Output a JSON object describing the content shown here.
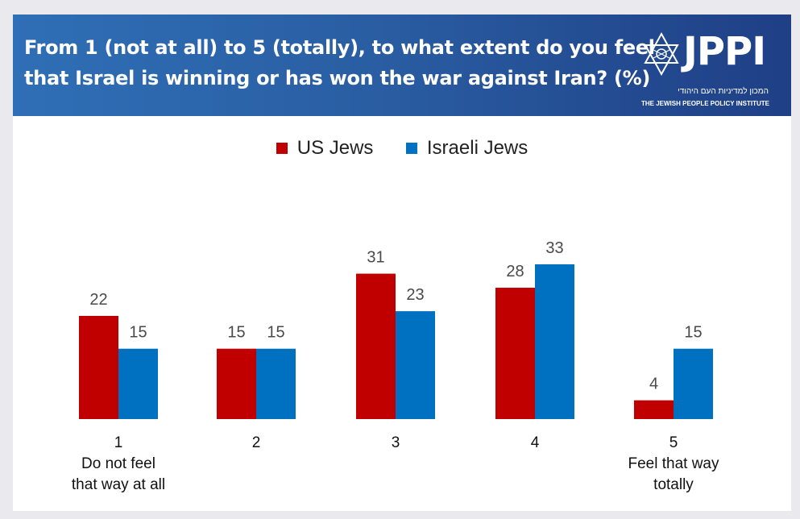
{
  "header": {
    "title_lines": [
      "From 1 (not at all) to 5 (totally), to what extent do you feel",
      "that Israel is winning  or has won the war against Iran? (%)"
    ],
    "logo": {
      "text": "JPPI",
      "hebrew": "המכון למדיניות העם היהודי",
      "english": "THE JEWISH PEOPLE POLICY INSTITUTE",
      "icon": "star-of-david-icon"
    }
  },
  "colors": {
    "us_jews": "#c00000",
    "israeli_jews": "#0070c0",
    "banner": "#2a5ea3"
  },
  "chart_data": {
    "type": "bar",
    "title": "From 1 (not at all) to 5 (totally), to what extent do you feel that Israel is winning  or has won the war against Iran? (%)",
    "categories": [
      [
        "1",
        "Do not feel",
        "that way at all"
      ],
      [
        "2"
      ],
      [
        "3"
      ],
      [
        "4"
      ],
      [
        "5",
        "Feel that way",
        "totally"
      ]
    ],
    "series": [
      {
        "name": "US Jews",
        "values": [
          22,
          15,
          31,
          28,
          4
        ]
      },
      {
        "name": "Israeli Jews",
        "values": [
          15,
          15,
          23,
          33,
          15
        ]
      }
    ],
    "legend_position": "top-center",
    "grid": false,
    "ylim": [
      0,
      35
    ]
  }
}
